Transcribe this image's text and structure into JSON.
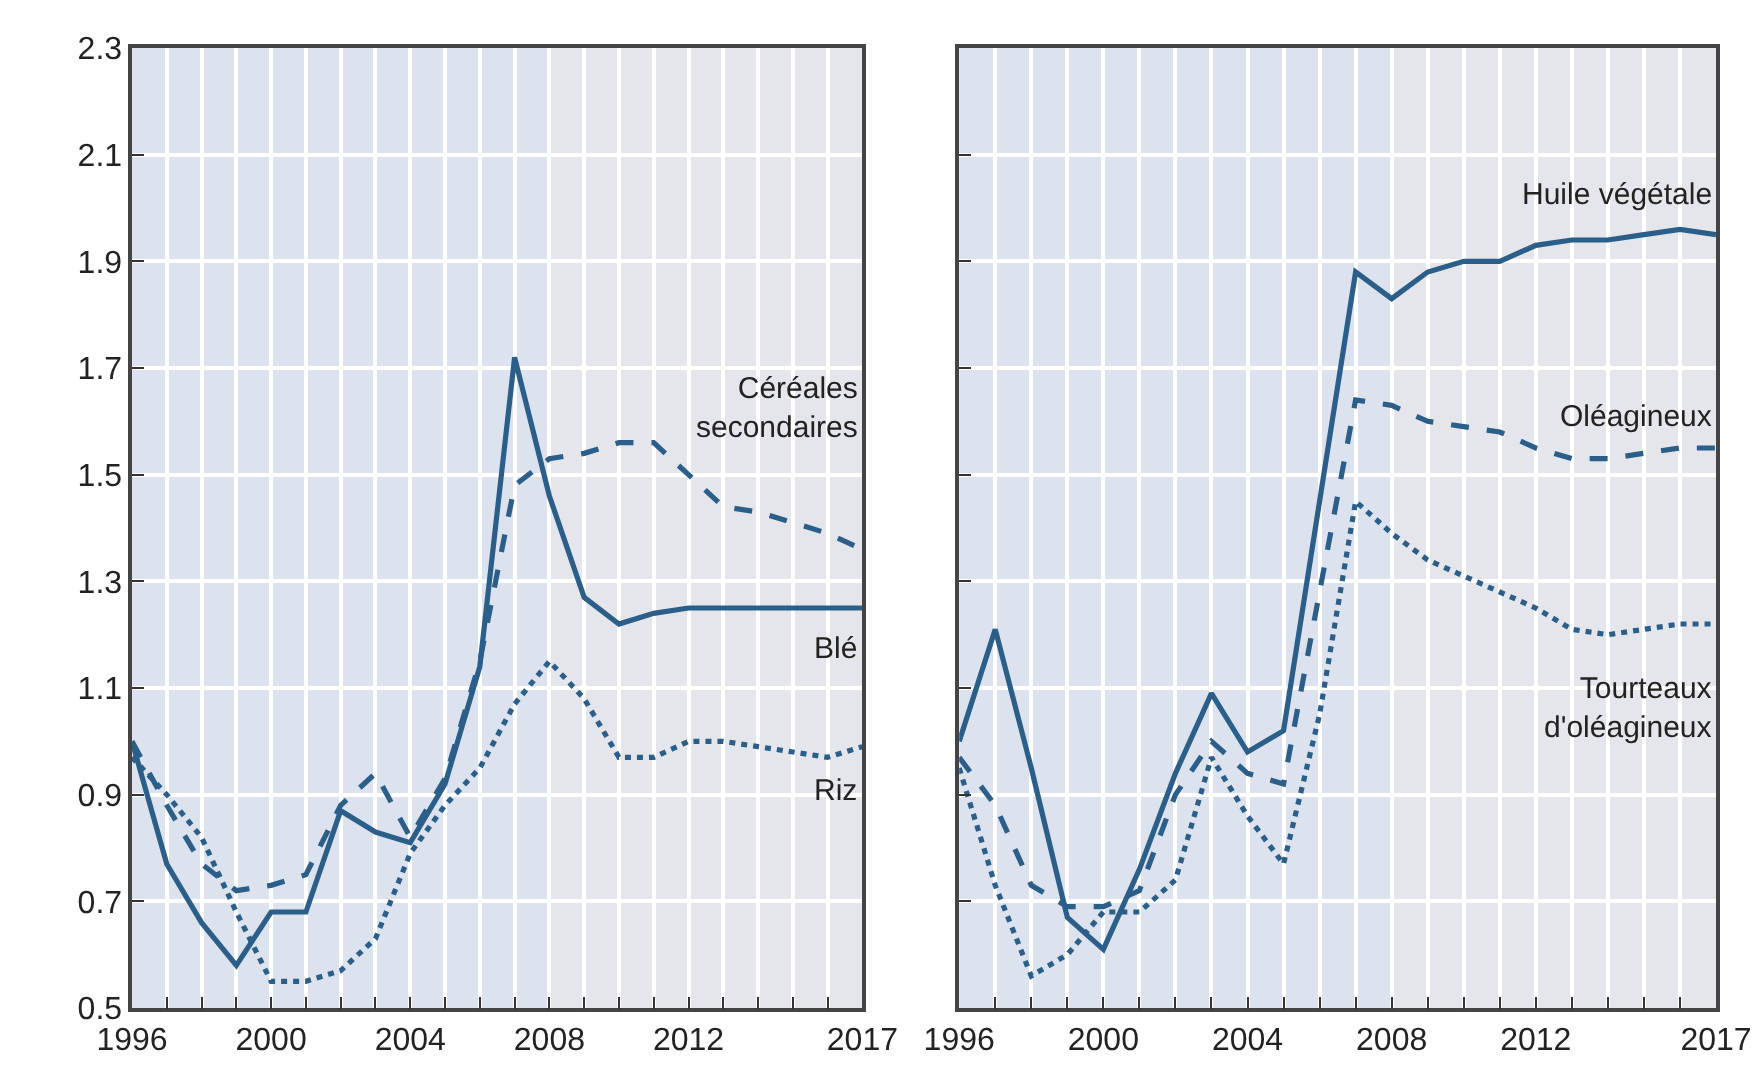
{
  "chart_data": [
    {
      "type": "line",
      "x": [
        1996,
        1997,
        1998,
        1999,
        2000,
        2001,
        2002,
        2003,
        2004,
        2005,
        2006,
        2007,
        2008,
        2009,
        2010,
        2011,
        2012,
        2013,
        2014,
        2015,
        2016,
        2017
      ],
      "series": [
        {
          "name": "Blé",
          "color": "#2b5f8a",
          "line_style": "solid",
          "values": [
            1.0,
            0.77,
            0.66,
            0.58,
            0.68,
            0.68,
            0.87,
            0.83,
            0.81,
            0.92,
            1.14,
            1.72,
            1.46,
            1.27,
            1.22,
            1.24,
            1.25,
            1.25,
            1.25,
            1.25,
            1.25,
            1.25
          ]
        },
        {
          "name": "Céréales\nsecondaires",
          "color": "#2b5f8a",
          "line_style": "dashed",
          "values": [
            1.0,
            0.88,
            0.77,
            0.72,
            0.73,
            0.75,
            0.88,
            0.94,
            0.82,
            0.93,
            1.15,
            1.48,
            1.53,
            1.54,
            1.56,
            1.56,
            1.5,
            1.44,
            1.43,
            1.41,
            1.39,
            1.36
          ]
        },
        {
          "name": "Riz",
          "color": "#2b5f8a",
          "line_style": "dotted",
          "values": [
            0.97,
            0.9,
            0.82,
            0.68,
            0.55,
            0.55,
            0.57,
            0.63,
            0.79,
            0.88,
            0.95,
            1.07,
            1.15,
            1.08,
            0.97,
            0.97,
            1.0,
            1.0,
            0.99,
            0.98,
            0.97,
            0.99
          ]
        }
      ],
      "xlim": [
        1996,
        2017
      ],
      "ylim": [
        0.5,
        2.3
      ],
      "xticks": [
        1996,
        {
          "value": 1997,
          "label": null
        },
        {
          "value": 1998,
          "label": null
        },
        {
          "value": 1999,
          "label": null
        },
        2000,
        {
          "value": 2001,
          "label": null
        },
        {
          "value": 2002,
          "label": null
        },
        {
          "value": 2003,
          "label": null
        },
        2004,
        {
          "value": 2005,
          "label": null
        },
        {
          "value": 2006,
          "label": null
        },
        {
          "value": 2007,
          "label": null
        },
        2008,
        {
          "value": 2009,
          "label": null
        },
        {
          "value": 2010,
          "label": null
        },
        {
          "value": 2011,
          "label": null
        },
        2012,
        {
          "value": 2013,
          "label": null
        },
        {
          "value": 2014,
          "label": null
        },
        {
          "value": 2015,
          "label": null
        },
        {
          "value": 2016,
          "label": null
        },
        2017
      ],
      "yticks": [
        0.5,
        0.7,
        0.9,
        1.1,
        1.3,
        1.5,
        1.7,
        1.9,
        2.1,
        2.3
      ],
      "bands": [
        {
          "axis": "x",
          "from": 2008,
          "to": 2017,
          "label": null,
          "color": "#e5e6eb"
        }
      ],
      "grid": true
    },
    {
      "type": "line",
      "x": [
        1996,
        1997,
        1998,
        1999,
        2000,
        2001,
        2002,
        2003,
        2004,
        2005,
        2006,
        2007,
        2008,
        2009,
        2010,
        2011,
        2012,
        2013,
        2014,
        2015,
        2016,
        2017
      ],
      "series": [
        {
          "name": "Huile végétale",
          "color": "#2b5f8a",
          "line_style": "solid",
          "values": [
            1.0,
            1.21,
            0.95,
            0.67,
            0.61,
            0.76,
            0.94,
            1.09,
            0.98,
            1.02,
            1.45,
            1.88,
            1.83,
            1.88,
            1.9,
            1.9,
            1.93,
            1.94,
            1.94,
            1.95,
            1.96,
            1.95
          ]
        },
        {
          "name": "Oléagineux",
          "color": "#2b5f8a",
          "line_style": "dashed",
          "values": [
            0.97,
            0.88,
            0.73,
            0.69,
            0.69,
            0.72,
            0.9,
            1.0,
            0.94,
            0.92,
            1.28,
            1.64,
            1.63,
            1.6,
            1.59,
            1.58,
            1.55,
            1.53,
            1.53,
            1.54,
            1.55,
            1.55
          ]
        },
        {
          "name": "Tourteaux\nd'oléagineux",
          "color": "#2b5f8a",
          "line_style": "dotted",
          "values": [
            0.95,
            0.73,
            0.56,
            0.6,
            0.68,
            0.68,
            0.74,
            0.97,
            0.86,
            0.77,
            1.05,
            1.45,
            1.39,
            1.34,
            1.31,
            1.28,
            1.25,
            1.21,
            1.2,
            1.21,
            1.22,
            1.22
          ]
        }
      ],
      "xlim": [
        1996,
        2017
      ],
      "ylim": [
        0.5,
        2.3
      ],
      "xticks": [
        1996,
        {
          "value": 1997,
          "label": null
        },
        {
          "value": 1998,
          "label": null
        },
        {
          "value": 1999,
          "label": null
        },
        2000,
        {
          "value": 2001,
          "label": null
        },
        {
          "value": 2002,
          "label": null
        },
        {
          "value": 2003,
          "label": null
        },
        2004,
        {
          "value": 2005,
          "label": null
        },
        {
          "value": 2006,
          "label": null
        },
        {
          "value": 2007,
          "label": null
        },
        2008,
        {
          "value": 2009,
          "label": null
        },
        {
          "value": 2010,
          "label": null
        },
        {
          "value": 2011,
          "label": null
        },
        2012,
        {
          "value": 2013,
          "label": null
        },
        {
          "value": 2014,
          "label": null
        },
        {
          "value": 2015,
          "label": null
        },
        {
          "value": 2016,
          "label": null
        },
        2017
      ],
      "yticks": [
        0.5,
        0.7,
        0.9,
        1.1,
        1.3,
        1.5,
        1.7,
        1.9,
        2.1,
        2.3
      ],
      "bands": [
        {
          "axis": "x",
          "from": 2008,
          "to": 2017,
          "label": null,
          "color": "#e5e6eb"
        }
      ],
      "tick_labels": "x",
      "grid": true
    }
  ]
}
